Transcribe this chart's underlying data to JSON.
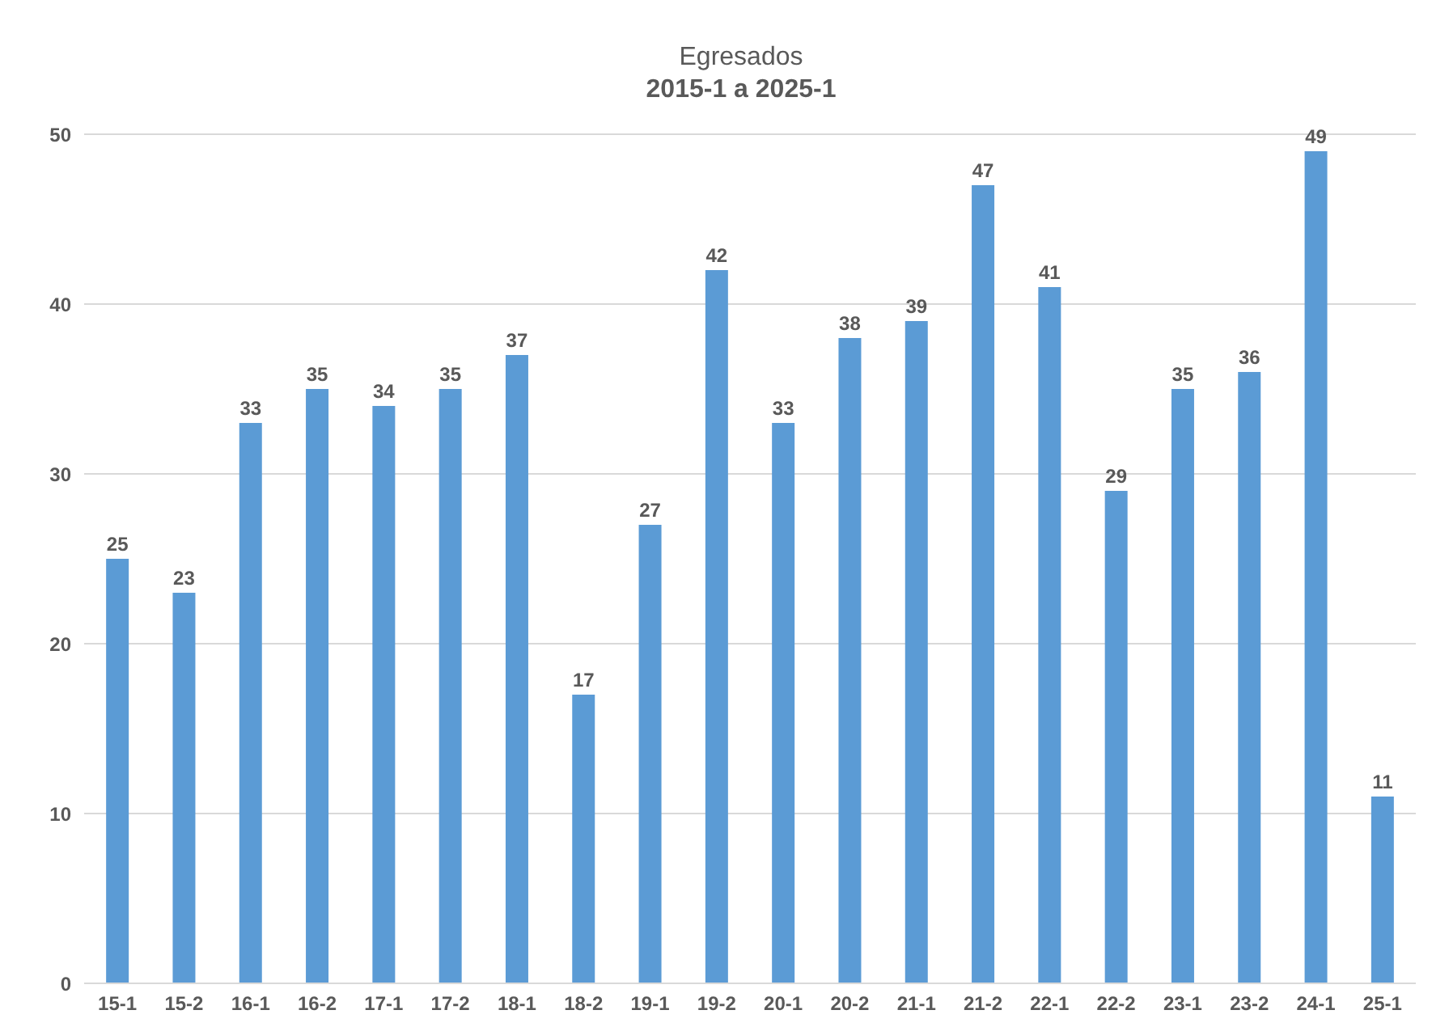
{
  "chart_data": {
    "type": "bar",
    "title": "Egresados",
    "subtitle": "2015-1 a 2025-1",
    "categories": [
      "15-1",
      "15-2",
      "16-1",
      "16-2",
      "17-1",
      "17-2",
      "18-1",
      "18-2",
      "19-1",
      "19-2",
      "20-1",
      "20-2",
      "21-1",
      "21-2",
      "22-1",
      "22-2",
      "23-1",
      "23-2",
      "24-1",
      "25-1"
    ],
    "values": [
      25,
      23,
      33,
      35,
      34,
      35,
      37,
      17,
      27,
      42,
      33,
      38,
      39,
      47,
      41,
      29,
      35,
      36,
      49,
      11
    ],
    "color": "#5b9bd5",
    "ylim": [
      0,
      50
    ],
    "yticks": [
      0,
      10,
      20,
      30,
      40,
      50
    ],
    "grid": "y",
    "data_labels": true
  }
}
